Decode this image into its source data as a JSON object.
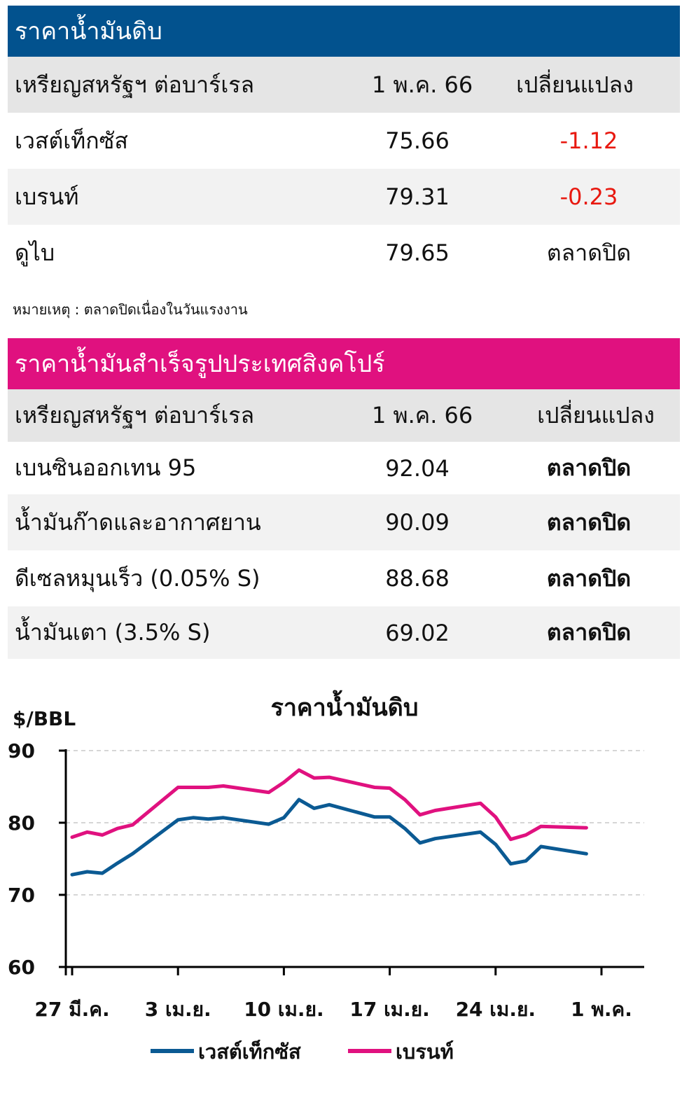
{
  "crude": {
    "title": "ราคาน้ำมันดิบ",
    "header": {
      "label": "เหรียญสหรัฐฯ ต่อบาร์เรล",
      "date": "1 พ.ค. 66",
      "change": "เปลี่ยนแปลง"
    },
    "rows": [
      {
        "name": "เวสต์เท็กซัส",
        "price": "75.66",
        "change": "-1.12"
      },
      {
        "name": "เบรนท์",
        "price": "79.31",
        "change": "-0.23"
      },
      {
        "name": "ดูไบ",
        "price": "79.65",
        "change": "ตลาดปิด"
      }
    ],
    "note": "หมายเหตุ : ตลาดปิดเนื่องในวันแรงงาน"
  },
  "singapore": {
    "title": "ราคาน้ำมันสำเร็จรูปประเทศสิงคโปร์",
    "header": {
      "label": "เหรียญสหรัฐฯ ต่อบาร์เรล",
      "date": "1 พ.ค. 66",
      "change": "เปลี่ยนแปลง"
    },
    "rows": [
      {
        "name": "เบนซินออกเทน 95",
        "price": "92.04",
        "change": "ตลาดปิด"
      },
      {
        "name": "น้ำมันก๊าดและอากาศยาน",
        "price": "90.09",
        "change": "ตลาดปิด"
      },
      {
        "name": "ดีเซลหมุนเร็ว (0.05% S)",
        "price": "88.68",
        "change": "ตลาดปิด"
      },
      {
        "name": "น้ำมันเตา (3.5% S)",
        "price": "69.02",
        "change": "ตลาดปิด"
      }
    ]
  },
  "colors": {
    "wti": "#0b5a93",
    "brent": "#e0117f",
    "negative": "#e8180f"
  },
  "chart_data": {
    "type": "line",
    "title": "ราคาน้ำมันดิบ",
    "ylabel": "$/BBL",
    "ylim": [
      60,
      90
    ],
    "yticks": [
      60,
      70,
      80,
      90
    ],
    "grid": "horizontal dashed",
    "xticks": [
      {
        "label": "27 มี.ค.",
        "day": 0
      },
      {
        "label": "3 เม.ย.",
        "day": 7
      },
      {
        "label": "10 เม.ย.",
        "day": 14
      },
      {
        "label": "17 เม.ย.",
        "day": 21
      },
      {
        "label": "24 เม.ย.",
        "day": 28
      },
      {
        "label": "1 พ.ค.",
        "day": 35
      }
    ],
    "legend_position": "bottom",
    "series": [
      {
        "name": "เวสต์เท็กซัส",
        "points": [
          [
            0,
            72.8
          ],
          [
            1,
            73.2
          ],
          [
            2,
            73.0
          ],
          [
            3,
            74.4
          ],
          [
            4,
            75.7
          ],
          [
            7,
            80.4
          ],
          [
            8,
            80.7
          ],
          [
            9,
            80.5
          ],
          [
            10,
            80.7
          ],
          [
            13,
            79.8
          ],
          [
            14,
            80.7
          ],
          [
            15,
            83.2
          ],
          [
            16,
            82.0
          ],
          [
            17,
            82.5
          ],
          [
            20,
            80.8
          ],
          [
            21,
            80.8
          ],
          [
            22,
            79.2
          ],
          [
            23,
            77.2
          ],
          [
            24,
            77.8
          ],
          [
            27,
            78.7
          ],
          [
            28,
            77.0
          ],
          [
            29,
            74.3
          ],
          [
            30,
            74.7
          ],
          [
            31,
            76.7
          ],
          [
            34,
            75.7
          ]
        ]
      },
      {
        "name": "เบรนท์",
        "points": [
          [
            0,
            78.0
          ],
          [
            1,
            78.7
          ],
          [
            2,
            78.3
          ],
          [
            3,
            79.2
          ],
          [
            4,
            79.7
          ],
          [
            7,
            84.9
          ],
          [
            8,
            84.9
          ],
          [
            9,
            84.9
          ],
          [
            10,
            85.1
          ],
          [
            13,
            84.2
          ],
          [
            14,
            85.6
          ],
          [
            15,
            87.3
          ],
          [
            16,
            86.2
          ],
          [
            17,
            86.3
          ],
          [
            20,
            84.9
          ],
          [
            21,
            84.8
          ],
          [
            22,
            83.2
          ],
          [
            23,
            81.1
          ],
          [
            24,
            81.7
          ],
          [
            27,
            82.7
          ],
          [
            28,
            80.8
          ],
          [
            29,
            77.7
          ],
          [
            30,
            78.3
          ],
          [
            31,
            79.5
          ],
          [
            34,
            79.3
          ]
        ]
      }
    ]
  }
}
